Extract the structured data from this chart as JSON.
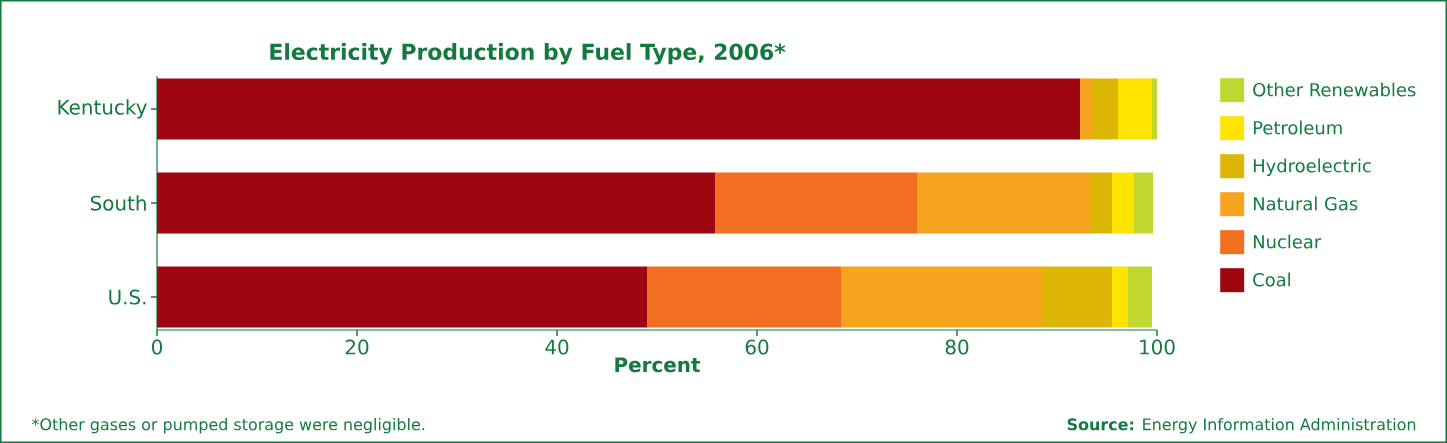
{
  "chart_data": {
    "type": "bar",
    "orientation": "horizontal",
    "stacked": true,
    "title": "Electricity Production by Fuel Type, 2006*",
    "xlabel": "Percent",
    "categories": [
      "Kentucky",
      "South",
      "U.S."
    ],
    "series": [
      {
        "name": "Coal",
        "color": "#9e0710",
        "values": [
          92.3,
          55.8,
          49.0
        ]
      },
      {
        "name": "Nuclear",
        "color": "#f26f21",
        "values": [
          0,
          20.2,
          19.4
        ]
      },
      {
        "name": "Natural Gas",
        "color": "#f7a41e",
        "values": [
          1.2,
          17.3,
          20.0
        ]
      },
      {
        "name": "Hydroelectric",
        "color": "#deb606",
        "values": [
          2.6,
          2.2,
          7.1
        ]
      },
      {
        "name": "Petroleum",
        "color": "#ffe400",
        "values": [
          3.4,
          2.2,
          1.6
        ]
      },
      {
        "name": "Other Renewables",
        "color": "#bfd730",
        "values": [
          0.5,
          1.9,
          2.4
        ]
      }
    ],
    "xlim": [
      0,
      100
    ],
    "xticks": [
      0,
      20,
      40,
      60,
      80,
      100
    ],
    "legend": "right",
    "grid": false,
    "annotations": [
      "*Other gases or pumped storage were negligible.",
      "**Source:** Energy Information Administration"
    ]
  }
}
